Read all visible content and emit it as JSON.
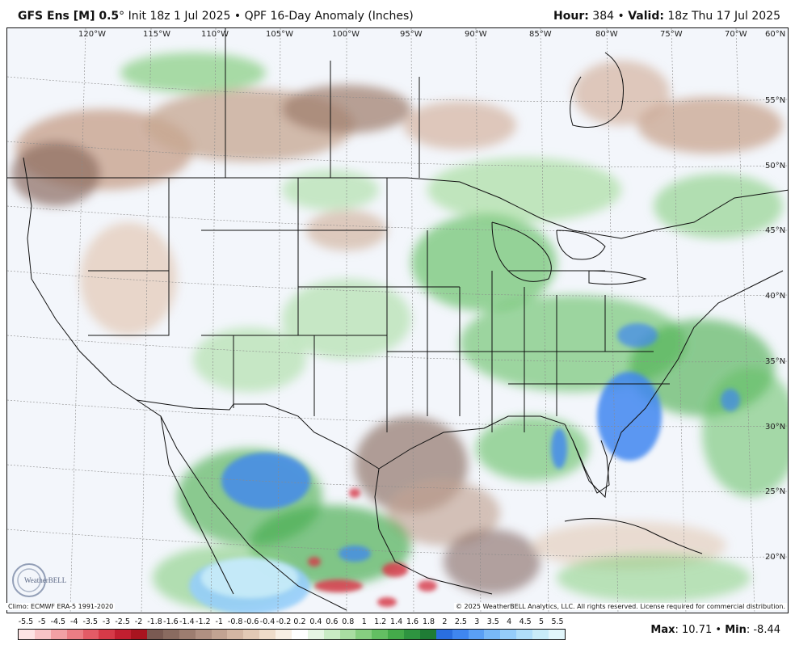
{
  "header": {
    "model": "GFS Ens [M] 0.5",
    "degree": "°",
    "init": "Init 18z 1 Jul 2025",
    "separator": "•",
    "product": "QPF 16-Day Anomaly (Inches)",
    "hour_label": "Hour:",
    "hour_value": "384",
    "valid_label": "Valid:",
    "valid_value": "18z Thu 17 Jul 2025"
  },
  "map": {
    "longitude_labels": [
      "120°W",
      "115°W",
      "110°W",
      "105°W",
      "100°W",
      "95°W",
      "90°W",
      "85°W",
      "80°W",
      "75°W",
      "70°W",
      "60°N"
    ],
    "latitude_labels": [
      "55°N",
      "50°N",
      "45°N",
      "40°N",
      "35°N",
      "30°N",
      "25°N",
      "20°N"
    ],
    "climo_note": "Climo: ECMWF ERA-5 1991-2020",
    "copyright": "© 2025 WeatherBELL Analytics, LLC. All rights reserved. License required for commercial distribution.",
    "logo_text": "WeatherBELL"
  },
  "legend": {
    "labels": [
      "-5.5",
      "-5",
      "-4.5",
      "-4",
      "-3.5",
      "-3",
      "-2.5",
      "-2",
      "-1.8",
      "-1.6",
      "-1.4",
      "-1.2",
      "-1",
      "-0.8",
      "-0.6",
      "-0.4",
      "-0.2",
      "0.2",
      "0.4",
      "0.6",
      "0.8",
      "1",
      "1.2",
      "1.4",
      "1.6",
      "1.8",
      "2",
      "2.5",
      "3",
      "3.5",
      "4",
      "4.5",
      "5",
      "5.5"
    ],
    "colors": [
      "#fde4e4",
      "#f8c4c6",
      "#f2a0a4",
      "#eb7d84",
      "#e35b66",
      "#d63a48",
      "#c21f30",
      "#a9141f",
      "#7a5a52",
      "#8a6b60",
      "#9d7d70",
      "#b09082",
      "#c2a392",
      "#d3b6a3",
      "#e2c9b5",
      "#eedcca",
      "#f8efe4",
      "#ffffff",
      "#e6f5e3",
      "#c9ebc4",
      "#a9dea2",
      "#86cf80",
      "#63bf62",
      "#44ab4a",
      "#2e9440",
      "#1f7c35",
      "#2a6ee0",
      "#3f86f0",
      "#5a9ff5",
      "#78b8f8",
      "#95cdfa",
      "#b0def9",
      "#c9ecf8",
      "#e1f6fb"
    ]
  },
  "stats": {
    "max_label": "Max",
    "max_value": "10.71",
    "min_label": "Min",
    "min_value": "-8.44"
  }
}
